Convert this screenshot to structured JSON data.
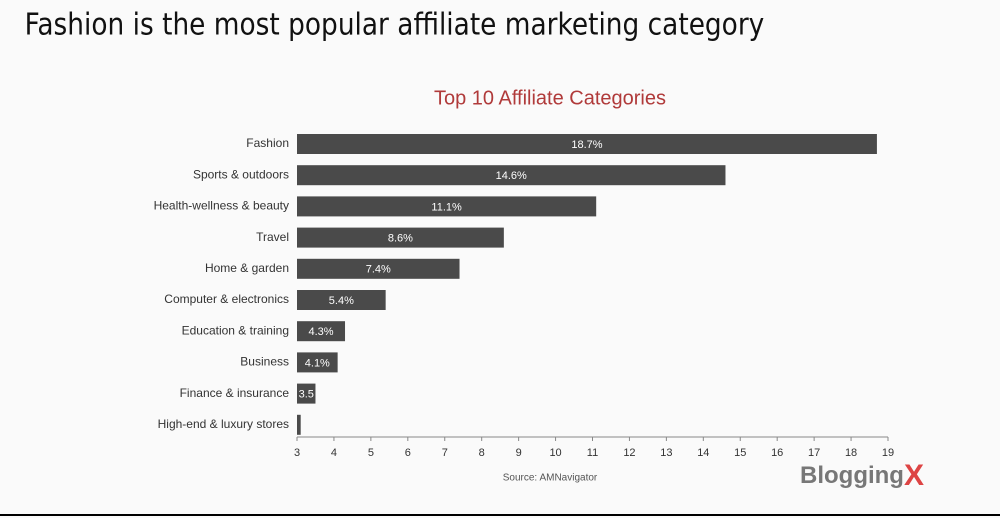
{
  "header": {
    "title": "Fashion is the most popular affiliate marketing category"
  },
  "chart_data": {
    "type": "hbar",
    "title": "Top 10 Affiliate Categories",
    "categories": [
      "Fashion",
      "Sports & outdoors",
      "Health-wellness & beauty",
      "Travel",
      "Home & garden",
      "Computer & electronics",
      "Education & training",
      "Business",
      "Finance & insurance",
      "High-end & luxury stores"
    ],
    "values": [
      18.7,
      14.6,
      11.1,
      8.6,
      7.4,
      5.4,
      4.3,
      4.1,
      3.5,
      3.1
    ],
    "value_labels": [
      "18.7%",
      "14.6%",
      "11.1%",
      "8.6%",
      "7.4%",
      "5.4%",
      "4.3%",
      "4.1%",
      "3.5",
      null
    ],
    "color": "#4a4a4a",
    "xlim": [
      3,
      19
    ],
    "xticks": [
      3,
      4,
      5,
      6,
      7,
      8,
      9,
      10,
      11,
      12,
      13,
      14,
      15,
      16,
      17,
      18,
      19
    ],
    "source": "Source: AMNavigator"
  },
  "logo": [
    "Blogging",
    "X"
  ]
}
